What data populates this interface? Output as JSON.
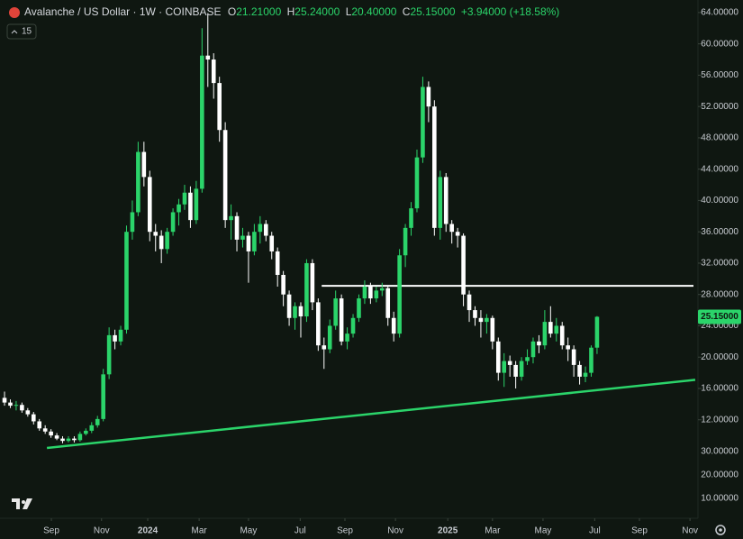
{
  "chart_data": {
    "type": "candlestick",
    "symbol": "Avalanche / US Dollar · 1W · COINBASE",
    "ohlc_legend": [
      {
        "label": "O",
        "value": "21.21000"
      },
      {
        "label": "H",
        "value": "25.24000"
      },
      {
        "label": "L",
        "value": "20.40000"
      },
      {
        "label": "C",
        "value": "25.15000"
      }
    ],
    "change_label": "+3.94000 (+18.58%)",
    "interval_box": "15",
    "last_price": 25.15,
    "last_price_label": "25.15000",
    "up_color": "#2bd46a",
    "down_color": "#ffffff",
    "open": [
      14.8,
      14.2,
      13.8,
      13.9,
      13.2,
      12.7,
      11.8,
      10.9,
      10.5,
      10.0,
      9.6,
      9.3,
      9.6,
      9.4,
      10.2,
      10.6,
      11.3,
      12.1,
      17.8,
      22.8,
      22.0,
      23.5,
      36.0,
      38.5,
      46.2,
      43.0,
      36.0,
      35.5,
      33.8,
      36.0,
      38.5,
      39.5,
      41.0,
      37.5,
      41.5,
      58.5,
      58.0,
      55.0,
      49.0,
      37.5,
      38.0,
      35.0,
      35.5,
      33.5,
      36.0,
      37.0,
      35.5,
      33.5,
      30.5,
      28.0,
      25.0,
      26.5,
      25.2,
      32.0,
      27.0,
      21.5,
      21.0,
      24.0,
      27.5,
      22.0,
      23.0,
      25.0,
      27.5,
      29.0,
      27.5,
      28.5,
      28.8,
      25.0,
      23.0,
      33.0,
      36.5,
      39.0,
      45.5,
      54.5,
      52.0,
      36.5,
      43.0,
      37.0,
      36.0,
      35.5,
      28.0,
      26.0,
      25.0,
      24.5,
      25.0,
      22.0,
      18.0,
      19.5,
      19.0,
      17.5,
      19.5,
      20.0,
      22.0,
      21.5,
      24.5,
      23.0,
      24.0,
      21.5,
      21.0,
      19.0,
      17.5,
      18.0,
      21.21
    ],
    "high": [
      15.6,
      14.6,
      14.4,
      14.2,
      13.5,
      13.0,
      12.1,
      11.3,
      10.8,
      10.3,
      9.9,
      9.9,
      9.9,
      10.5,
      10.9,
      11.7,
      12.5,
      18.5,
      23.8,
      23.5,
      24.0,
      36.8,
      40.0,
      47.5,
      47.5,
      43.8,
      37.0,
      36.2,
      36.5,
      39.0,
      40.2,
      42.0,
      41.8,
      42.5,
      62.0,
      63.9,
      58.8,
      55.8,
      50.0,
      39.5,
      38.5,
      36.5,
      36.0,
      37.0,
      38.0,
      37.5,
      36.0,
      34.0,
      31.0,
      28.5,
      27.0,
      27.0,
      32.5,
      32.5,
      27.5,
      22.5,
      24.8,
      28.5,
      28.0,
      23.8,
      25.5,
      28.0,
      29.8,
      29.5,
      29.0,
      29.5,
      29.0,
      25.8,
      33.8,
      37.0,
      39.8,
      46.5,
      55.8,
      55.2,
      52.8,
      43.8,
      43.5,
      37.5,
      36.5,
      35.8,
      28.5,
      26.5,
      26.0,
      25.5,
      25.3,
      22.5,
      20.5,
      20.2,
      19.5,
      20.0,
      21.0,
      22.5,
      22.8,
      26.0,
      26.5,
      25.0,
      24.5,
      22.5,
      21.5,
      19.5,
      18.8,
      21.5,
      25.24
    ],
    "low": [
      13.8,
      13.5,
      13.2,
      12.9,
      12.4,
      11.4,
      10.6,
      10.2,
      9.7,
      9.4,
      9.0,
      9.1,
      9.1,
      9.2,
      10.0,
      10.3,
      11.0,
      11.8,
      17.2,
      21.0,
      21.5,
      23.0,
      35.0,
      38.0,
      41.8,
      34.8,
      33.5,
      32.0,
      33.2,
      35.5,
      36.8,
      38.8,
      36.5,
      37.0,
      41.0,
      54.5,
      53.0,
      47.5,
      36.5,
      35.0,
      33.5,
      34.0,
      29.5,
      33.0,
      34.5,
      34.8,
      32.5,
      29.0,
      26.5,
      24.0,
      23.5,
      22.5,
      24.5,
      26.0,
      20.8,
      18.5,
      20.5,
      23.5,
      21.5,
      21.0,
      22.5,
      24.5,
      26.8,
      26.8,
      27.0,
      27.8,
      24.0,
      22.0,
      22.5,
      31.5,
      35.5,
      38.5,
      44.8,
      50.0,
      35.5,
      35.0,
      36.0,
      34.5,
      34.0,
      26.5,
      24.5,
      24.0,
      22.5,
      23.0,
      21.0,
      17.0,
      16.2,
      17.5,
      16.0,
      17.0,
      19.0,
      19.2,
      20.5,
      21.0,
      22.5,
      22.0,
      21.0,
      19.5,
      17.5,
      16.5,
      16.8,
      17.5,
      20.4
    ],
    "close": [
      14.2,
      13.8,
      13.9,
      13.2,
      12.7,
      11.8,
      10.9,
      10.5,
      10.0,
      9.6,
      9.3,
      9.6,
      9.4,
      10.2,
      10.6,
      11.3,
      12.1,
      17.8,
      22.8,
      22.0,
      23.5,
      36.0,
      38.5,
      46.2,
      43.0,
      36.0,
      35.5,
      33.8,
      36.0,
      38.5,
      39.5,
      41.0,
      37.5,
      41.5,
      58.5,
      58.0,
      55.0,
      49.0,
      37.5,
      38.0,
      35.0,
      35.5,
      33.5,
      36.0,
      37.0,
      35.5,
      33.5,
      30.5,
      28.0,
      25.0,
      26.5,
      25.2,
      32.0,
      27.0,
      21.5,
      21.0,
      24.0,
      27.5,
      22.0,
      23.0,
      25.0,
      27.5,
      29.0,
      27.5,
      28.5,
      28.8,
      25.0,
      23.0,
      33.0,
      36.5,
      39.0,
      45.5,
      54.5,
      52.0,
      36.5,
      43.0,
      37.0,
      36.0,
      35.5,
      28.0,
      26.0,
      25.0,
      24.5,
      25.0,
      22.0,
      18.0,
      19.5,
      19.0,
      17.5,
      19.5,
      20.0,
      22.0,
      21.5,
      24.5,
      23.0,
      24.0,
      21.5,
      21.0,
      19.0,
      17.5,
      18.0,
      21.21,
      25.15
    ],
    "xlim": [
      -0.78,
      118.6
    ],
    "ylim": [
      0,
      65.6
    ],
    "xticks": [
      {
        "value": 8.06,
        "label": "Sep"
      },
      {
        "value": 16.7,
        "label": "Nov"
      },
      {
        "value": 24.65,
        "label": "2024"
      },
      {
        "value": 33.5,
        "label": "Mar"
      },
      {
        "value": 42,
        "label": "May"
      },
      {
        "value": 50.9,
        "label": "Jul"
      },
      {
        "value": 58.6,
        "label": "Sep"
      },
      {
        "value": 67.3,
        "label": "Nov"
      },
      {
        "value": 76.3,
        "label": "2025"
      },
      {
        "value": 84,
        "label": "Mar"
      },
      {
        "value": 92.7,
        "label": "May"
      },
      {
        "value": 101.6,
        "label": "Jul"
      },
      {
        "value": 109.3,
        "label": "Sep"
      },
      {
        "value": 118,
        "label": "Nov"
      }
    ],
    "yticks": [
      {
        "value": 64,
        "label": "64.00000"
      },
      {
        "value": 60,
        "label": "60.00000"
      },
      {
        "value": 56,
        "label": "56.00000"
      },
      {
        "value": 52,
        "label": "52.00000"
      },
      {
        "value": 48,
        "label": "48.00000"
      },
      {
        "value": 44,
        "label": "44.00000"
      },
      {
        "value": 40,
        "label": "40.00000"
      },
      {
        "value": 36,
        "label": "36.00000"
      },
      {
        "value": 32,
        "label": "32.00000"
      },
      {
        "value": 28,
        "label": "28.00000"
      },
      {
        "value": 24,
        "label": "24.00000"
      },
      {
        "value": 20,
        "label": "20.00000"
      },
      {
        "value": 16,
        "label": "16.00000"
      },
      {
        "value": 12,
        "label": "12.00000"
      }
    ],
    "extra_axis_labels": [
      "30.00000",
      "20.00000",
      "10.00000"
    ],
    "horizontal_line": {
      "level": 29.1,
      "start": 54.6,
      "color": "#ffffff"
    },
    "trend_line": {
      "x": [
        7.3,
        118.9
      ],
      "y": [
        8.4,
        17.1
      ],
      "color": "#2bd46a"
    }
  }
}
